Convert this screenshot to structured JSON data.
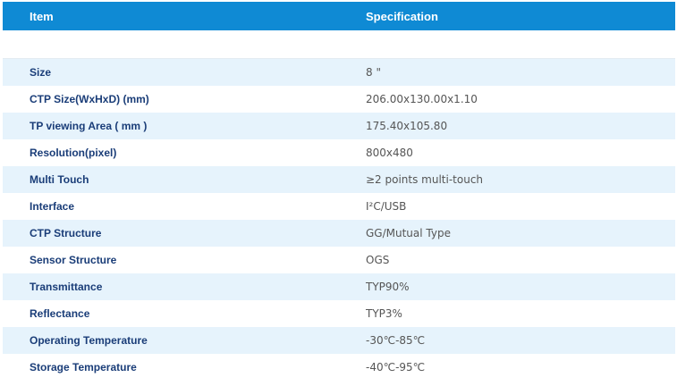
{
  "table": {
    "headers": {
      "item": "Item",
      "specification": "Specification"
    },
    "rows": [
      {
        "item": "Size",
        "spec": "8 \""
      },
      {
        "item": "CTP Size(WxHxD) (mm)",
        "spec": "206.00x130.00x1.10"
      },
      {
        "item": "TP viewing Area ( mm )",
        "spec": "175.40x105.80"
      },
      {
        "item": "Resolution(pixel)",
        "spec": "800x480"
      },
      {
        "item": "Multi Touch",
        "spec": "≥2 points multi-touch"
      },
      {
        "item": "Interface",
        "spec": "I²C/USB"
      },
      {
        "item": "CTP Structure",
        "spec": "GG/Mutual Type"
      },
      {
        "item": "Sensor Structure",
        "spec": "OGS"
      },
      {
        "item": "Transmittance",
        "spec": "TYP90%"
      },
      {
        "item": "Reflectance",
        "spec": "TYP3%"
      },
      {
        "item": "Operating Temperature",
        "spec": "-30℃-85℃"
      },
      {
        "item": "Storage Temperature",
        "spec": "-40℃-95℃"
      }
    ]
  },
  "colors": {
    "header_background": "#0f8ad4",
    "header_text": "#ffffff",
    "stripe_background": "#e6f3fc",
    "item_text": "#1a3d78",
    "spec_text": "#555555"
  }
}
